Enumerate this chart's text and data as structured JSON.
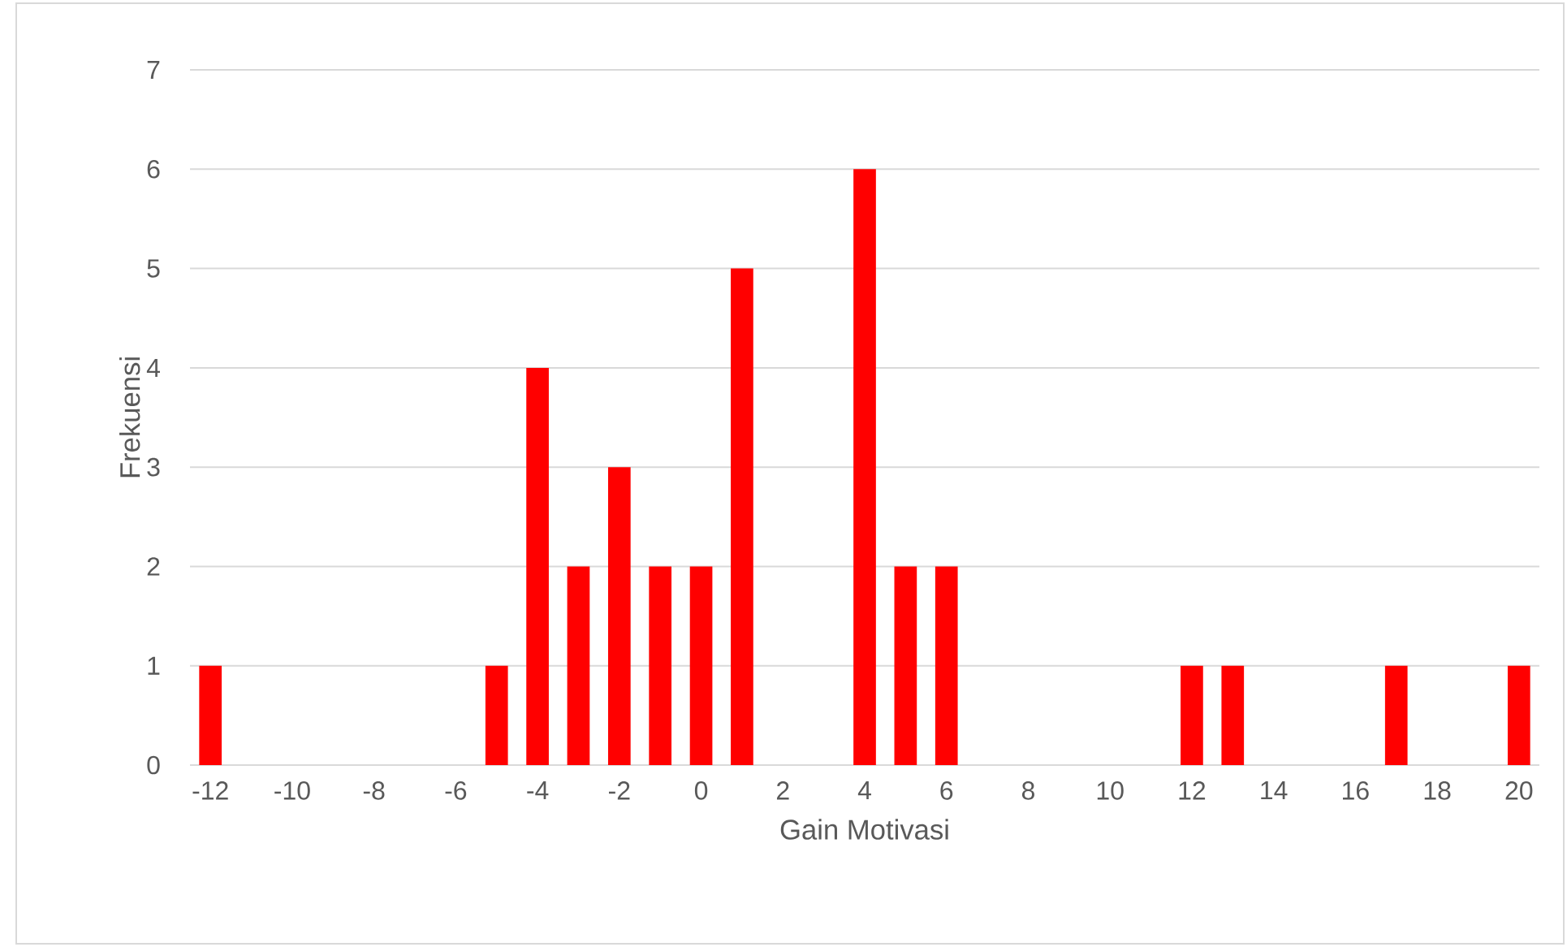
{
  "chart_data": {
    "type": "bar",
    "xlabel": "Gain Motivasi",
    "ylabel": "Frekuensi",
    "x": [
      -12,
      -5,
      -4,
      -3,
      -2,
      -1,
      0,
      1,
      4,
      5,
      6,
      12,
      13,
      17,
      20
    ],
    "values": [
      1,
      1,
      4,
      2,
      3,
      2,
      2,
      5,
      6,
      2,
      2,
      1,
      1,
      1,
      1
    ],
    "color": "#ff0000",
    "xlim": [
      -12.5,
      20.5
    ],
    "ylim": [
      0,
      7
    ],
    "xticks": [
      -12,
      -10,
      -8,
      -6,
      -4,
      -2,
      0,
      2,
      4,
      6,
      8,
      10,
      12,
      14,
      16,
      18,
      20
    ],
    "yticks": [
      0,
      1,
      2,
      3,
      4,
      5,
      6,
      7
    ],
    "grid": "y"
  }
}
